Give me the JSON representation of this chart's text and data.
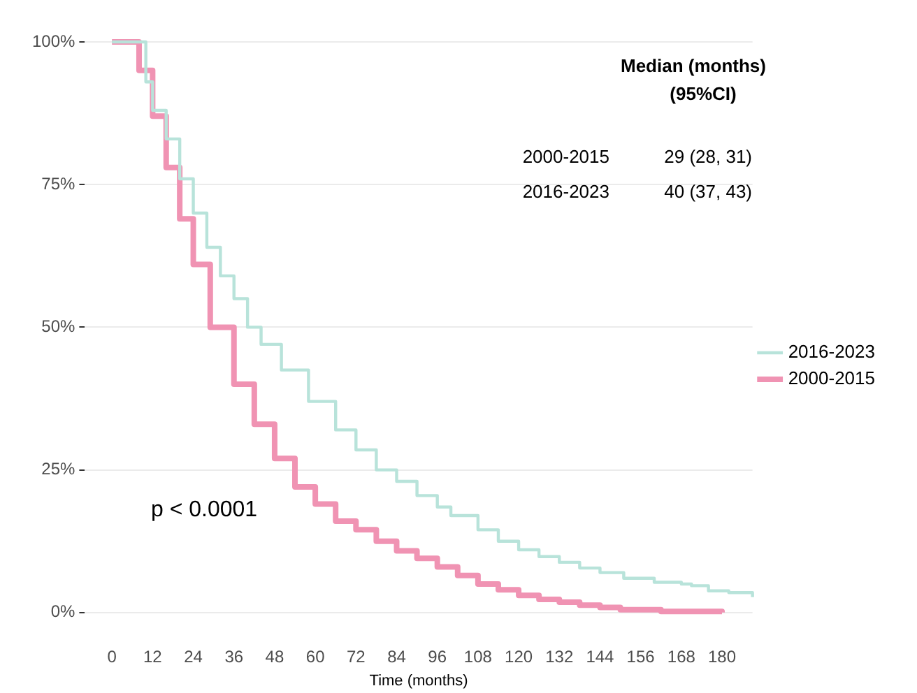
{
  "chart_data": {
    "type": "step",
    "xlabel": "Time (months)",
    "xlim": [
      -8,
      189
    ],
    "xticks": [
      0,
      12,
      24,
      36,
      48,
      60,
      72,
      84,
      96,
      108,
      120,
      132,
      144,
      156,
      168,
      180
    ],
    "ylim": [
      0,
      100
    ],
    "yticks": [
      {
        "value": 0,
        "label": "0%"
      },
      {
        "value": 25,
        "label": "25%"
      },
      {
        "value": 50,
        "label": "50%"
      },
      {
        "value": 75,
        "label": "75%"
      },
      {
        "value": 100,
        "label": "100%"
      }
    ],
    "grid": "y",
    "legend": "right",
    "marker": "none",
    "series": [
      {
        "name": "2000-2015",
        "color": "#f093b3",
        "x": [
          0,
          5,
          8,
          12,
          16,
          20,
          24,
          29,
          36,
          42,
          48,
          54,
          60,
          66,
          72,
          78,
          84,
          90,
          96,
          102,
          108,
          114,
          120,
          126,
          132,
          138,
          144,
          150,
          162,
          180
        ],
        "values": [
          100,
          100,
          95,
          87,
          78,
          69,
          61,
          50,
          40,
          33,
          27,
          22,
          19,
          16,
          14.5,
          12.5,
          10.8,
          9.5,
          8,
          6.5,
          5,
          4,
          3,
          2.3,
          1.8,
          1.3,
          0.9,
          0.5,
          0.2,
          0
        ]
      },
      {
        "name": "2016-2023",
        "color": "#b8e3da",
        "x": [
          0,
          6,
          10,
          12,
          16,
          20,
          24,
          28,
          32,
          36,
          40,
          44,
          50,
          58,
          66,
          72,
          78,
          84,
          90,
          96,
          100,
          108,
          114,
          120,
          126,
          132,
          138,
          144,
          151,
          160,
          168,
          171,
          176,
          182,
          189
        ],
        "values": [
          100,
          100,
          93,
          88,
          83,
          76,
          70,
          64,
          59,
          55,
          50,
          47,
          42.5,
          37,
          32,
          28.5,
          25,
          23,
          20.5,
          18.5,
          17,
          14.5,
          12.5,
          11,
          9.8,
          8.8,
          7.8,
          7,
          6,
          5.3,
          5,
          4.7,
          3.8,
          3.5,
          2.7
        ]
      }
    ],
    "annotations": [
      "Median (months)",
      "(95%CI)",
      "2000-2015",
      "29 (28, 31)",
      "2016-2023",
      "40 (37, 43)",
      "p < 0.0001"
    ]
  }
}
